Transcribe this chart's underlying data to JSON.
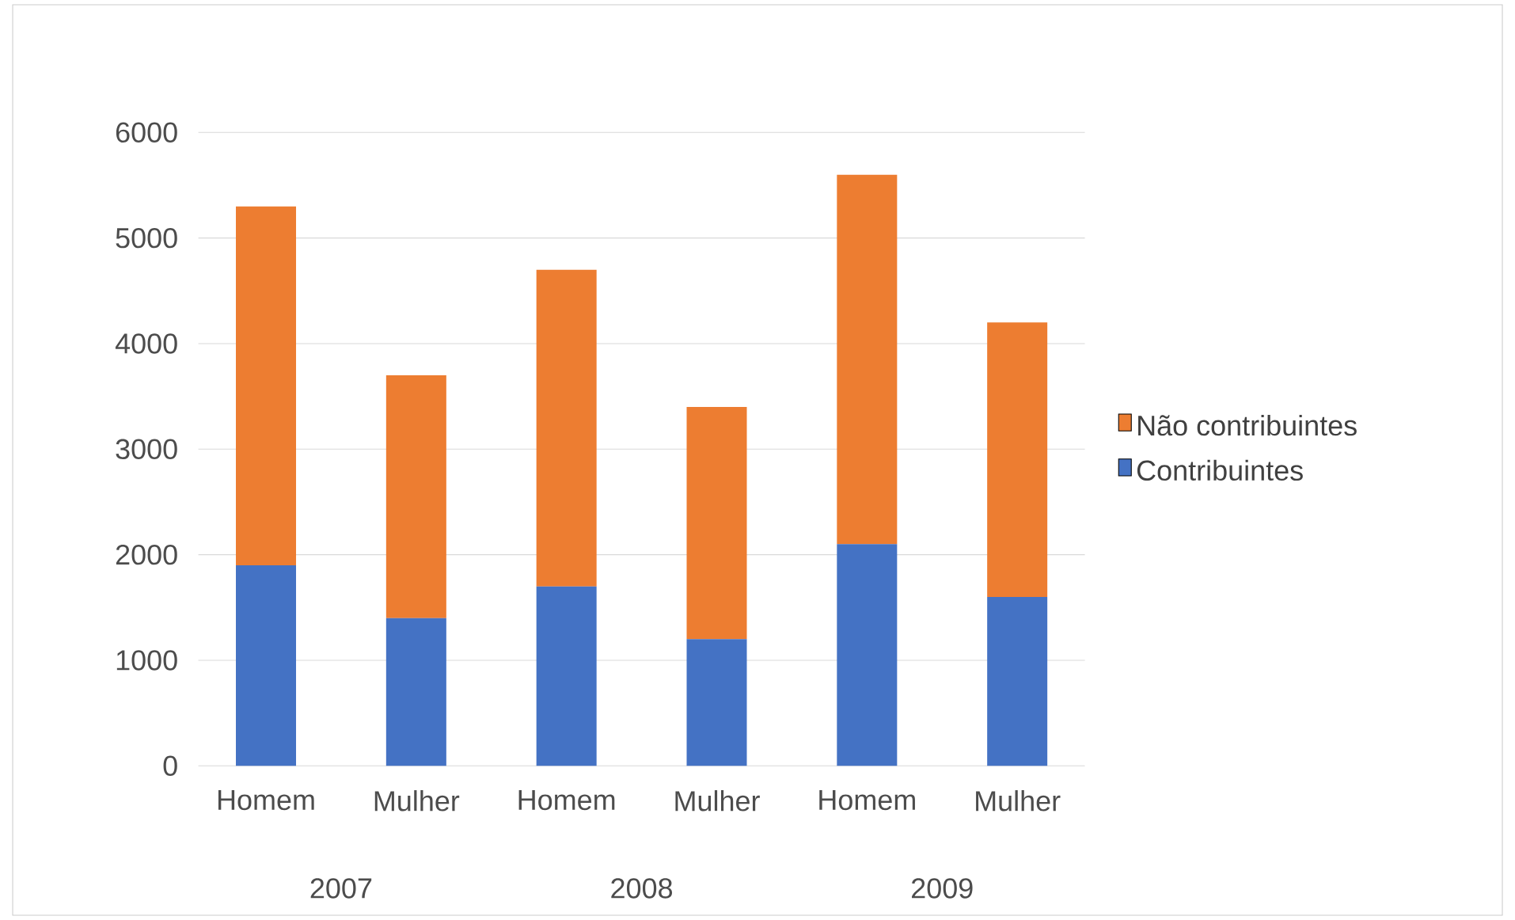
{
  "chart_data": {
    "type": "bar",
    "stacked": true,
    "categories": [
      "Homem",
      "Mulher",
      "Homem",
      "Mulher",
      "Homem",
      "Mulher"
    ],
    "annotations": [
      "2007",
      "2008",
      "2009"
    ],
    "series": [
      {
        "name": "Contribuintes",
        "color": "#4472c4",
        "values": [
          1900,
          1400,
          1700,
          1200,
          2100,
          1600
        ]
      },
      {
        "name": "Não contribuintes",
        "color": "#ed7d31",
        "values": [
          3400,
          2300,
          3000,
          2200,
          3500,
          2600
        ]
      }
    ],
    "ylim": [
      0,
      6000
    ],
    "yticks": [
      0,
      1000,
      2000,
      3000,
      4000,
      5000,
      6000
    ],
    "grid": "y",
    "legend": "right"
  }
}
